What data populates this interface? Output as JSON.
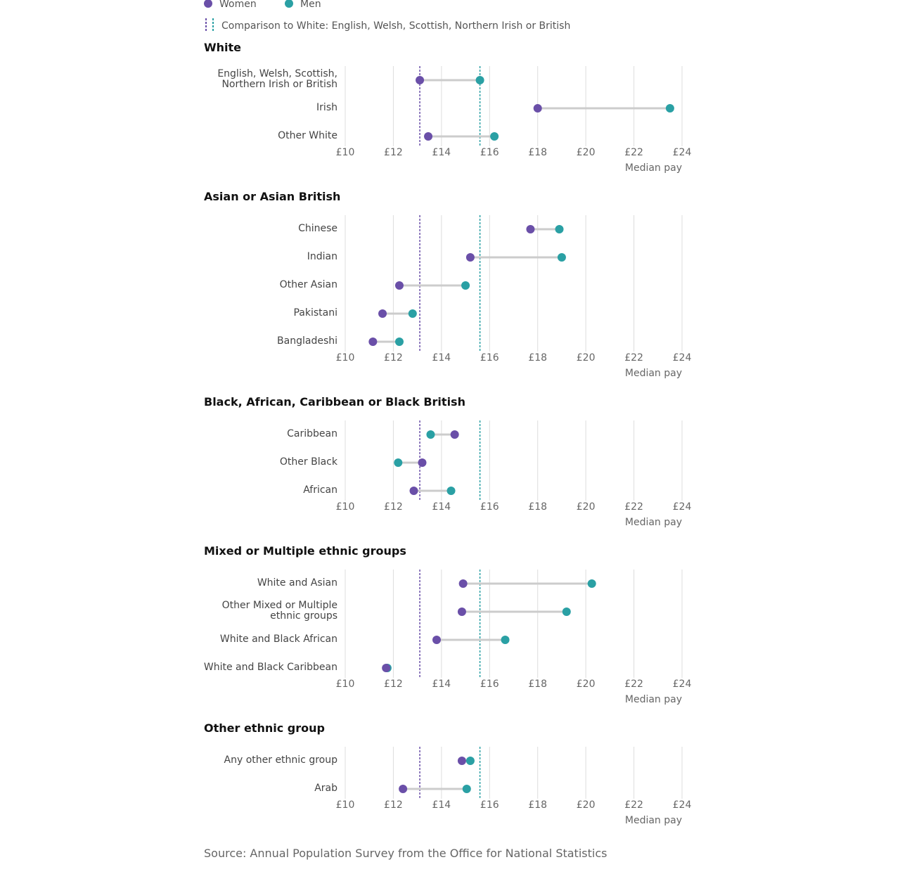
{
  "legend": {
    "women_label": "Women",
    "men_label": "Men",
    "comparison_label": "Comparison to White: English, Welsh, Scottish, Northern Irish or British"
  },
  "colors": {
    "women": "#6a4fa8",
    "men": "#2aa0a4",
    "connector": "#cccccc",
    "grid": "#dddddd"
  },
  "source": "Source: Annual Population Survey from the Office for National Statistics",
  "chart_data": [
    {
      "type": "dumbbell",
      "title": "White",
      "xlabel": "Median pay",
      "xlim": [
        10,
        24
      ],
      "xticks": [
        "£10",
        "£12",
        "£14",
        "£16",
        "£18",
        "£20",
        "£22",
        "£24"
      ],
      "reference_lines": {
        "women": 13.1,
        "men": 15.6
      },
      "rows": [
        {
          "label": [
            "English, Welsh, Scottish,",
            "Northern Irish or British"
          ],
          "women": 13.1,
          "men": 15.6
        },
        {
          "label": [
            "Irish"
          ],
          "women": 18.0,
          "men": 23.5
        },
        {
          "label": [
            "Other White"
          ],
          "women": 13.45,
          "men": 16.2
        }
      ]
    },
    {
      "type": "dumbbell",
      "title": "Asian or Asian British",
      "xlabel": "Median pay",
      "xlim": [
        10,
        24
      ],
      "xticks": [
        "£10",
        "£12",
        "£14",
        "£16",
        "£18",
        "£20",
        "£22",
        "£24"
      ],
      "reference_lines": {
        "women": 13.1,
        "men": 15.6
      },
      "rows": [
        {
          "label": [
            "Chinese"
          ],
          "women": 17.7,
          "men": 18.9
        },
        {
          "label": [
            "Indian"
          ],
          "women": 15.2,
          "men": 19.0
        },
        {
          "label": [
            "Other Asian"
          ],
          "women": 12.25,
          "men": 15.0
        },
        {
          "label": [
            "Pakistani"
          ],
          "women": 11.55,
          "men": 12.8
        },
        {
          "label": [
            "Bangladeshi"
          ],
          "women": 11.15,
          "men": 12.25
        }
      ]
    },
    {
      "type": "dumbbell",
      "title": "Black, African, Caribbean or Black British",
      "xlabel": "Median pay",
      "xlim": [
        10,
        24
      ],
      "xticks": [
        "£10",
        "£12",
        "£14",
        "£16",
        "£18",
        "£20",
        "£22",
        "£24"
      ],
      "reference_lines": {
        "women": 13.1,
        "men": 15.6
      },
      "rows": [
        {
          "label": [
            "Caribbean"
          ],
          "women": 14.55,
          "men": 13.55
        },
        {
          "label": [
            "Other Black"
          ],
          "women": 13.2,
          "men": 12.2
        },
        {
          "label": [
            "African"
          ],
          "women": 12.85,
          "men": 14.4
        }
      ]
    },
    {
      "type": "dumbbell",
      "title": "Mixed or Multiple ethnic groups",
      "xlabel": "Median pay",
      "xlim": [
        10,
        24
      ],
      "xticks": [
        "£10",
        "£12",
        "£14",
        "£16",
        "£18",
        "£20",
        "£22",
        "£24"
      ],
      "reference_lines": {
        "women": 13.1,
        "men": 15.6
      },
      "rows": [
        {
          "label": [
            "White and Asian"
          ],
          "women": 14.9,
          "men": 20.25
        },
        {
          "label": [
            "Other Mixed or Multiple",
            "ethnic groups"
          ],
          "women": 14.85,
          "men": 19.2
        },
        {
          "label": [
            "White and Black African"
          ],
          "women": 13.8,
          "men": 16.65
        },
        {
          "label": [
            "White and Black Caribbean"
          ],
          "women": 11.7,
          "men": 11.75
        }
      ]
    },
    {
      "type": "dumbbell",
      "title": "Other ethnic group",
      "xlabel": "Median pay",
      "xlim": [
        10,
        24
      ],
      "xticks": [
        "£10",
        "£12",
        "£14",
        "£16",
        "£18",
        "£20",
        "£22",
        "£24"
      ],
      "reference_lines": {
        "women": 13.1,
        "men": 15.6
      },
      "rows": [
        {
          "label": [
            "Any other ethnic group"
          ],
          "women": 14.85,
          "men": 15.2
        },
        {
          "label": [
            "Arab"
          ],
          "women": 12.4,
          "men": 15.05
        }
      ]
    }
  ]
}
